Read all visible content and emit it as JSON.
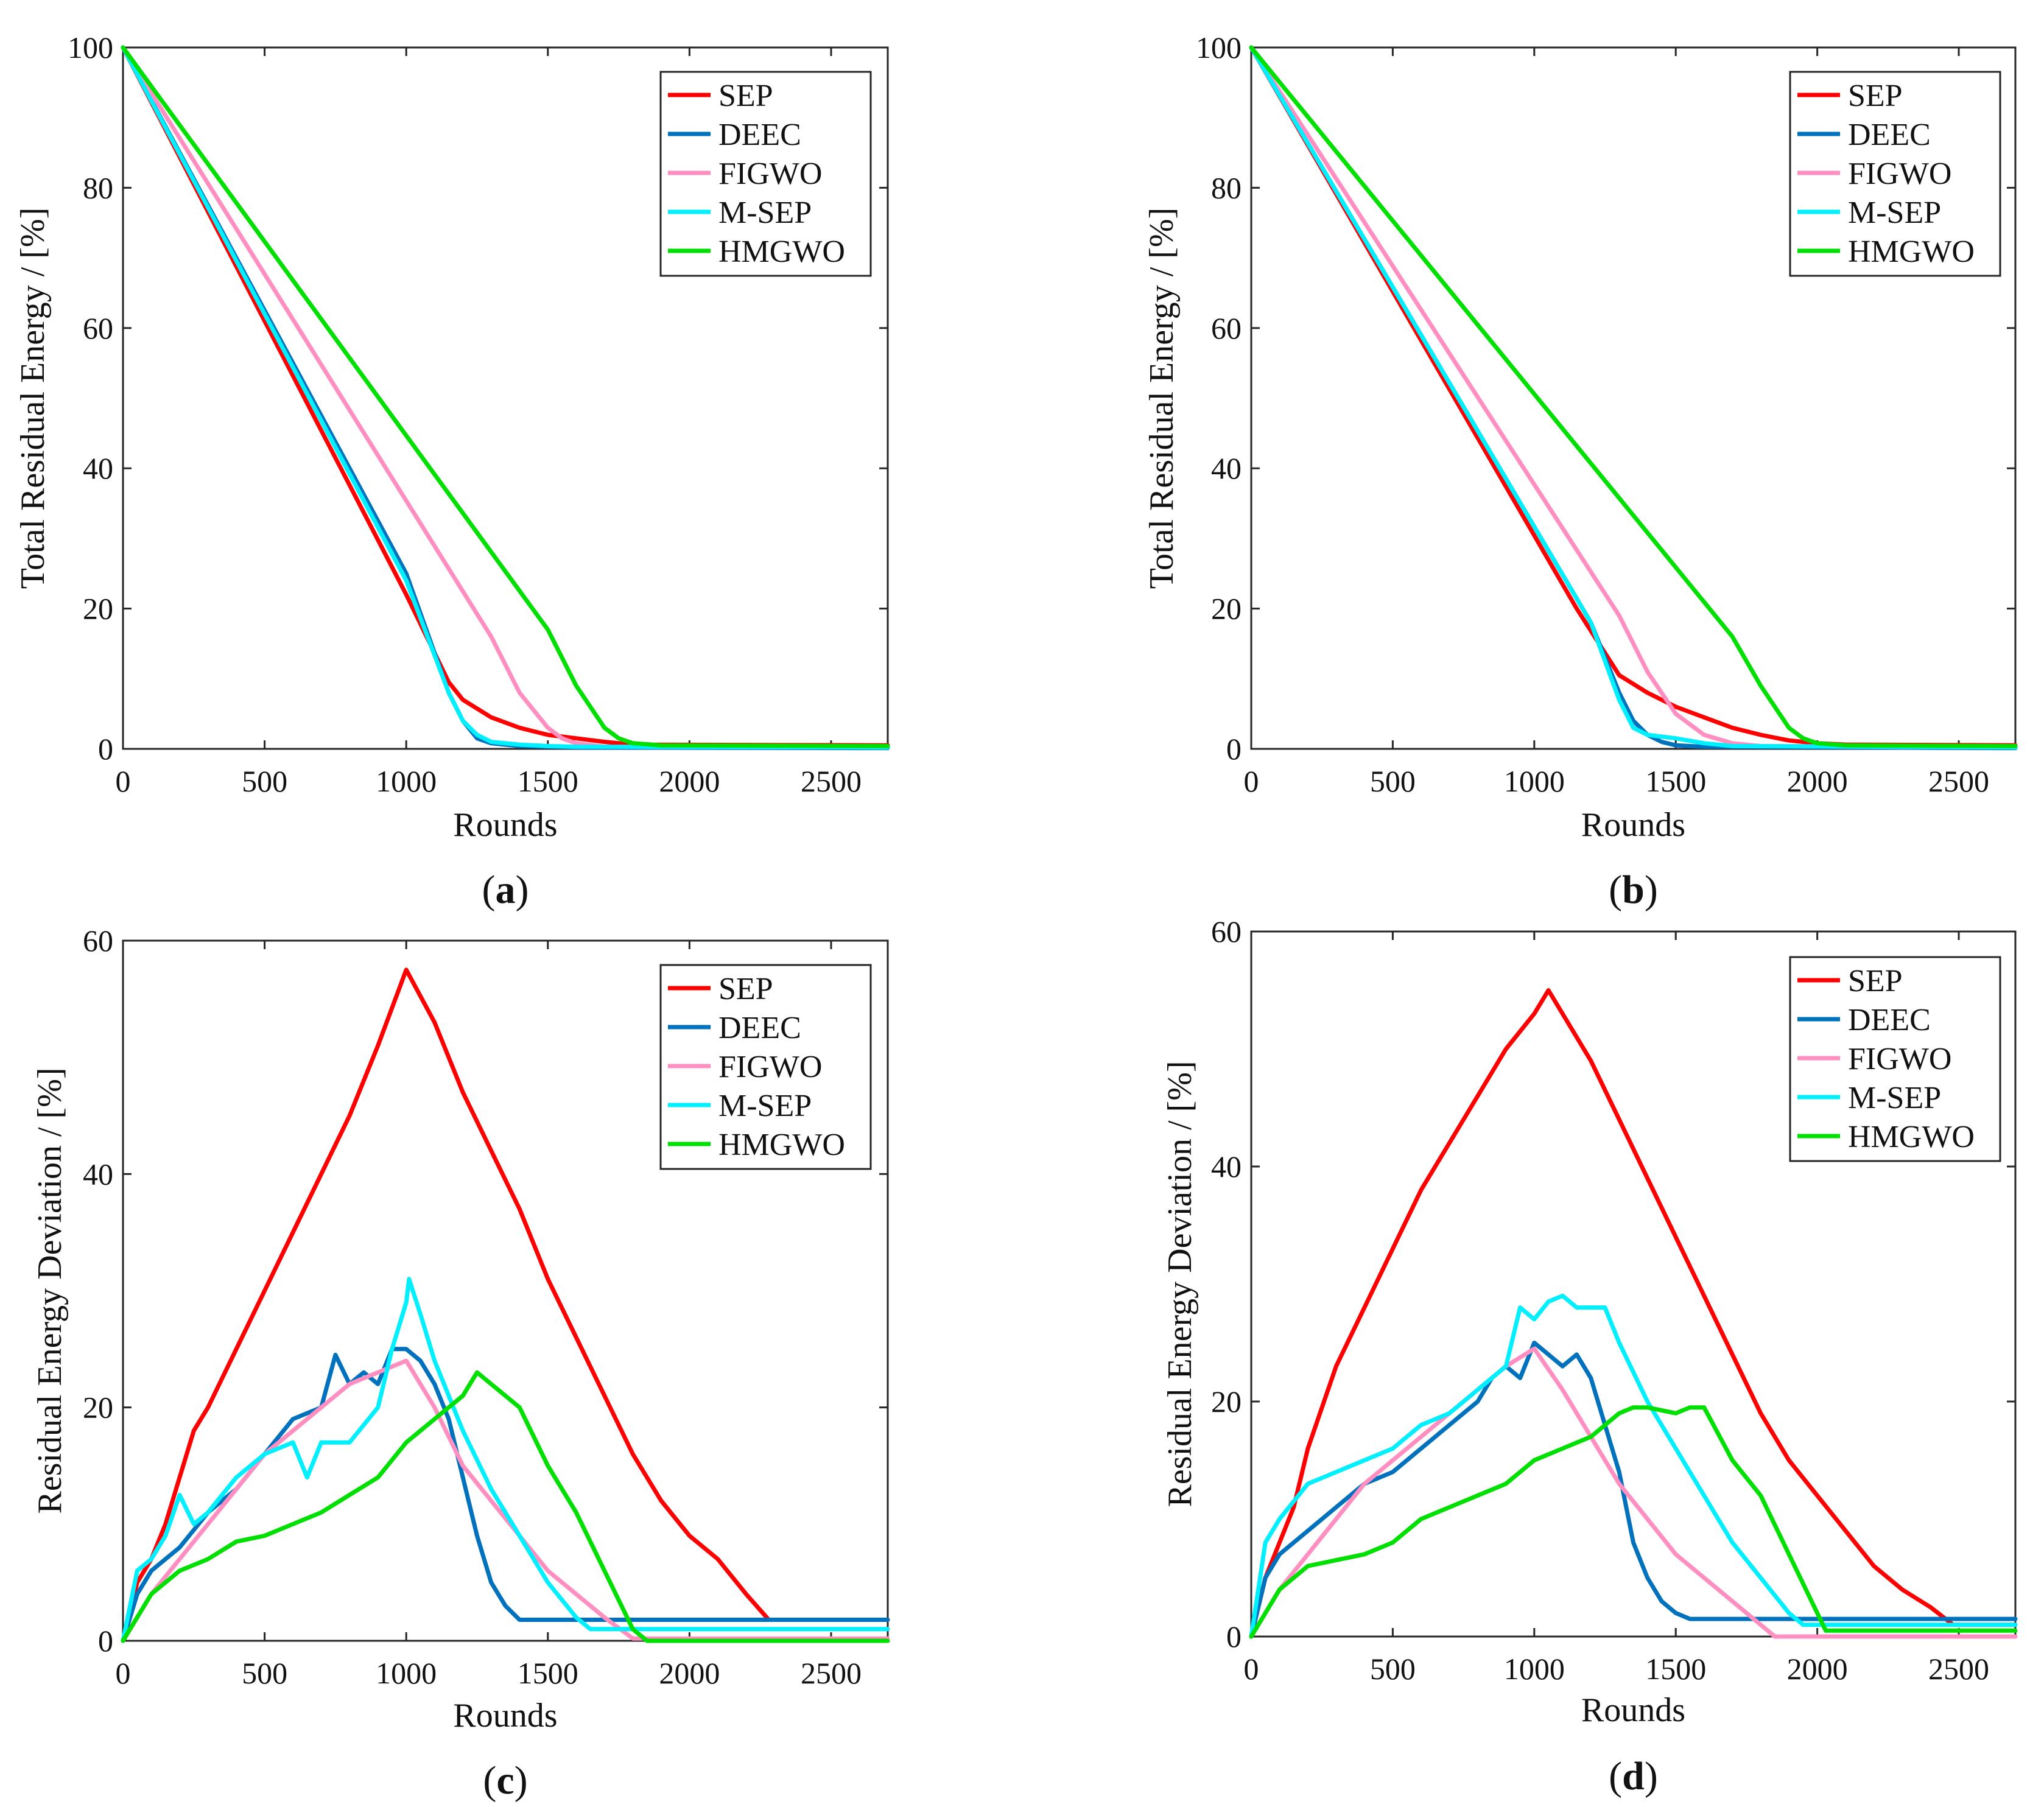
{
  "figure": {
    "colors": {
      "SEP": "#ff0000",
      "DEEC": "#0072bd",
      "FIGWO": "#ff8fc0",
      "M-SEP": "#00f0ff",
      "HMGWO": "#00e000"
    }
  },
  "chart_data": [
    {
      "id": "a",
      "type": "line",
      "caption": {
        "open": "(",
        "letter": "a",
        "close": ")"
      },
      "xlabel": "Rounds",
      "ylabel": "Total Residual Energy / [%]",
      "xlim": [
        0,
        2700
      ],
      "ylim": [
        0,
        100
      ],
      "xticks": [
        "0",
        "500",
        "1000",
        "1500",
        "2000",
        "2500"
      ],
      "yticks": [
        "0",
        "20",
        "40",
        "60",
        "80",
        "100"
      ],
      "legend": {
        "position": "top-right",
        "entries": [
          "SEP",
          "DEEC",
          "FIGWO",
          "M-SEP",
          "HMGWO"
        ]
      },
      "series": [
        {
          "name": "SEP",
          "color": "#ff0000",
          "x": [
            0,
            1000,
            1150,
            1200,
            1300,
            1400,
            1500,
            1600,
            1700,
            1800,
            2700
          ],
          "y": [
            100,
            22,
            9.5,
            7,
            4.5,
            3,
            2,
            1.5,
            1,
            0.6,
            0.5
          ]
        },
        {
          "name": "DEEC",
          "color": "#0072bd",
          "x": [
            0,
            1000,
            1150,
            1200,
            1250,
            1300,
            1400,
            1500,
            1600,
            2700
          ],
          "y": [
            100,
            25,
            8,
            4,
            1.5,
            0.8,
            0.4,
            0.3,
            0.2,
            0.1
          ]
        },
        {
          "name": "FIGWO",
          "color": "#ff8fc0",
          "x": [
            0,
            1300,
            1400,
            1500,
            1550,
            1600,
            1700,
            2700
          ],
          "y": [
            100,
            16,
            8,
            3,
            1.5,
            0.8,
            0.3,
            0.2
          ]
        },
        {
          "name": "M-SEP",
          "color": "#00f0ff",
          "x": [
            0,
            1000,
            1150,
            1200,
            1250,
            1300,
            1400,
            1500,
            1600,
            2700
          ],
          "y": [
            100,
            24,
            8,
            4,
            2,
            1,
            0.6,
            0.4,
            0.3,
            0.2
          ]
        },
        {
          "name": "HMGWO",
          "color": "#00e000",
          "x": [
            0,
            1500,
            1600,
            1700,
            1750,
            1800,
            1900,
            2700
          ],
          "y": [
            100,
            17,
            9,
            3,
            1.5,
            0.8,
            0.5,
            0.4
          ]
        }
      ]
    },
    {
      "id": "b",
      "type": "line",
      "caption": {
        "open": "(",
        "letter": "b",
        "close": ")"
      },
      "xlabel": "Rounds",
      "ylabel": "Total Residual Energy / [%]",
      "xlim": [
        0,
        2700
      ],
      "ylim": [
        0,
        100
      ],
      "xticks": [
        "0",
        "500",
        "1000",
        "1500",
        "2000",
        "2500"
      ],
      "yticks": [
        "0",
        "20",
        "40",
        "60",
        "80",
        "100"
      ],
      "legend": {
        "position": "top-right",
        "entries": [
          "SEP",
          "DEEC",
          "FIGWO",
          "M-SEP",
          "HMGWO"
        ]
      },
      "series": [
        {
          "name": "SEP",
          "color": "#ff0000",
          "x": [
            0,
            1150,
            1300,
            1400,
            1500,
            1600,
            1700,
            1800,
            1900,
            2000,
            2100,
            2700
          ],
          "y": [
            100,
            20,
            10.5,
            8,
            6,
            4.5,
            3,
            2,
            1.2,
            0.8,
            0.6,
            0.5
          ]
        },
        {
          "name": "DEEC",
          "color": "#0072bd",
          "x": [
            0,
            1200,
            1300,
            1350,
            1400,
            1450,
            1500,
            1600,
            2700
          ],
          "y": [
            100,
            18,
            8,
            4,
            2,
            1,
            0.5,
            0.3,
            0.1
          ]
        },
        {
          "name": "FIGWO",
          "color": "#ff8fc0",
          "x": [
            0,
            1300,
            1400,
            1500,
            1600,
            1700,
            1800,
            2700
          ],
          "y": [
            100,
            19,
            11,
            5,
            2,
            0.8,
            0.4,
            0.2
          ]
        },
        {
          "name": "M-SEP",
          "color": "#00f0ff",
          "x": [
            0,
            1200,
            1300,
            1350,
            1400,
            1500,
            1600,
            1700,
            2700
          ],
          "y": [
            100,
            18,
            7,
            3,
            2,
            1.5,
            0.8,
            0.4,
            0.2
          ]
        },
        {
          "name": "HMGWO",
          "color": "#00e000",
          "x": [
            0,
            1700,
            1800,
            1900,
            1950,
            2000,
            2100,
            2700
          ],
          "y": [
            100,
            16,
            9,
            3,
            1.5,
            0.8,
            0.5,
            0.4
          ]
        }
      ]
    },
    {
      "id": "c",
      "type": "line",
      "caption": {
        "open": "(",
        "letter": "c",
        "close": ")"
      },
      "xlabel": "Rounds",
      "ylabel": "Residual Energy Deviation / [%]",
      "xlim": [
        0,
        2700
      ],
      "ylim": [
        0,
        60
      ],
      "xticks": [
        "0",
        "500",
        "1000",
        "1500",
        "2000",
        "2500"
      ],
      "yticks": [
        "0",
        "20",
        "40",
        "60"
      ],
      "legend": {
        "position": "top-right",
        "entries": [
          "SEP",
          "DEEC",
          "FIGWO",
          "M-SEP",
          "HMGWO"
        ]
      },
      "series": [
        {
          "name": "SEP",
          "color": "#ff0000",
          "x": [
            0,
            50,
            100,
            150,
            200,
            250,
            300,
            400,
            500,
            600,
            700,
            800,
            900,
            1000,
            1100,
            1200,
            1300,
            1400,
            1500,
            1600,
            1700,
            1800,
            1900,
            2000,
            2100,
            2200,
            2280,
            2700
          ],
          "y": [
            0,
            5,
            7,
            10,
            14,
            18,
            20,
            25,
            30,
            35,
            40,
            45,
            51,
            57.5,
            53,
            47,
            42,
            37,
            31,
            26,
            21,
            16,
            12,
            9,
            7,
            4,
            1.8,
            1.8
          ]
        },
        {
          "name": "DEEC",
          "color": "#0072bd",
          "x": [
            0,
            50,
            100,
            200,
            300,
            400,
            500,
            600,
            700,
            750,
            800,
            850,
            900,
            950,
            1000,
            1050,
            1100,
            1150,
            1200,
            1250,
            1300,
            1350,
            1400,
            2700
          ],
          "y": [
            0,
            4,
            6,
            8,
            11,
            13,
            16,
            19,
            20,
            24.5,
            22,
            23,
            22,
            25,
            25,
            24,
            22,
            19,
            14,
            9,
            5,
            3,
            1.8,
            1.8
          ]
        },
        {
          "name": "FIGWO",
          "color": "#ff8fc0",
          "x": [
            0,
            100,
            200,
            300,
            400,
            500,
            600,
            700,
            800,
            900,
            1000,
            1100,
            1200,
            1300,
            1400,
            1500,
            1600,
            1700,
            1800,
            2700
          ],
          "y": [
            0,
            4,
            7,
            10,
            13,
            16,
            18,
            20,
            22,
            23,
            24,
            20,
            15,
            12,
            9,
            6,
            4,
            2,
            0.2,
            0.2
          ]
        },
        {
          "name": "M-SEP",
          "color": "#00f0ff",
          "x": [
            0,
            50,
            100,
            150,
            200,
            250,
            300,
            400,
            500,
            600,
            650,
            700,
            800,
            900,
            950,
            1000,
            1010,
            1050,
            1100,
            1200,
            1300,
            1400,
            1500,
            1600,
            1650,
            2700
          ],
          "y": [
            0,
            6,
            7,
            9,
            12.5,
            10,
            11,
            14,
            16,
            17,
            14,
            17,
            17,
            20,
            25,
            29,
            31,
            28,
            24,
            18,
            13,
            9,
            5,
            2,
            1,
            1
          ]
        },
        {
          "name": "HMGWO",
          "color": "#00e000",
          "x": [
            0,
            100,
            200,
            300,
            400,
            500,
            600,
            700,
            800,
            900,
            1000,
            1100,
            1200,
            1250,
            1300,
            1400,
            1500,
            1600,
            1700,
            1800,
            1850,
            2700
          ],
          "y": [
            0,
            4,
            6,
            7,
            8.5,
            9,
            10,
            11,
            12.5,
            14,
            17,
            19,
            21,
            23,
            22,
            20,
            15,
            11,
            6,
            1,
            0,
            0
          ]
        }
      ]
    },
    {
      "id": "d",
      "type": "line",
      "caption": {
        "open": "(",
        "letter": "d",
        "close": ")"
      },
      "xlabel": "Rounds",
      "ylabel": "Residual Energy Deviation / [%]",
      "xlim": [
        0,
        2700
      ],
      "ylim": [
        0,
        60
      ],
      "xticks": [
        "0",
        "500",
        "1000",
        "1500",
        "2000",
        "2500"
      ],
      "yticks": [
        "0",
        "20",
        "40",
        "60"
      ],
      "legend": {
        "position": "top-right",
        "entries": [
          "SEP",
          "DEEC",
          "FIGWO",
          "M-SEP",
          "HMGWO"
        ]
      },
      "series": [
        {
          "name": "SEP",
          "color": "#ff0000",
          "x": [
            0,
            50,
            100,
            150,
            200,
            300,
            400,
            500,
            600,
            700,
            800,
            900,
            1000,
            1050,
            1100,
            1200,
            1300,
            1400,
            1500,
            1600,
            1700,
            1800,
            1900,
            2000,
            2100,
            2200,
            2300,
            2400,
            2480,
            2700
          ],
          "y": [
            0,
            5,
            8,
            11,
            16,
            23,
            28,
            33,
            38,
            42,
            46,
            50,
            53,
            55,
            53,
            49,
            44,
            39,
            34,
            29,
            24,
            19,
            15,
            12,
            9,
            6,
            4,
            2.5,
            1,
            1
          ]
        },
        {
          "name": "DEEC",
          "color": "#0072bd",
          "x": [
            0,
            50,
            100,
            200,
            300,
            400,
            500,
            600,
            700,
            800,
            850,
            900,
            950,
            1000,
            1050,
            1100,
            1150,
            1200,
            1250,
            1300,
            1350,
            1400,
            1450,
            1500,
            1550,
            2700
          ],
          "y": [
            0,
            5,
            7,
            9,
            11,
            13,
            14,
            16,
            18,
            20,
            22,
            23,
            22,
            25,
            24,
            23,
            24,
            22,
            18,
            14,
            8,
            5,
            3,
            2,
            1.5,
            1.5
          ]
        },
        {
          "name": "FIGWO",
          "color": "#ff8fc0",
          "x": [
            0,
            100,
            200,
            300,
            400,
            500,
            600,
            700,
            800,
            900,
            1000,
            1100,
            1200,
            1300,
            1400,
            1500,
            1600,
            1700,
            1800,
            1850,
            2700
          ],
          "y": [
            0,
            4,
            7,
            10,
            13,
            15,
            17,
            19,
            21,
            23,
            24.5,
            21,
            17,
            13,
            10,
            7,
            5,
            3,
            1,
            0,
            0
          ]
        },
        {
          "name": "M-SEP",
          "color": "#00f0ff",
          "x": [
            0,
            50,
            100,
            200,
            300,
            400,
            500,
            600,
            700,
            800,
            900,
            950,
            1000,
            1050,
            1100,
            1150,
            1200,
            1250,
            1300,
            1400,
            1500,
            1600,
            1700,
            1800,
            1900,
            1950,
            2700
          ],
          "y": [
            0,
            8,
            10,
            13,
            14,
            15,
            16,
            18,
            19,
            21,
            23,
            28,
            27,
            28.5,
            29,
            28,
            28,
            28,
            25,
            20,
            16,
            12,
            8,
            5,
            2,
            1,
            1
          ]
        },
        {
          "name": "HMGWO",
          "color": "#00e000",
          "x": [
            0,
            100,
            200,
            300,
            400,
            500,
            600,
            700,
            800,
            900,
            1000,
            1100,
            1200,
            1300,
            1350,
            1400,
            1500,
            1550,
            1600,
            1700,
            1800,
            1900,
            2000,
            2030,
            2700
          ],
          "y": [
            0,
            4,
            6,
            6.5,
            7,
            8,
            10,
            11,
            12,
            13,
            15,
            16,
            17,
            19,
            19.5,
            19.5,
            19,
            19.5,
            19.5,
            15,
            12,
            7,
            2,
            0.5,
            0.5
          ]
        }
      ]
    }
  ]
}
